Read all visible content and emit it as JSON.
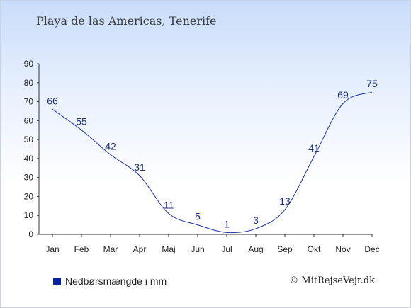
{
  "title": "Playa de las Americas, Tenerife",
  "copyright": "© MitRejseVejr.dk",
  "colors": {
    "line": "#1a2f9e",
    "legend_swatch": "#0a1fa6",
    "label": "#1f2f7a"
  },
  "chart_data": {
    "type": "line",
    "categories": [
      "Jan",
      "Feb",
      "Mar",
      "Apr",
      "Maj",
      "Jun",
      "Jul",
      "Aug",
      "Sep",
      "Okt",
      "Nov",
      "Dec"
    ],
    "series": [
      {
        "name": "Nedbørsmængde i mm",
        "values": [
          66,
          55,
          42,
          31,
          11,
          5,
          1,
          3,
          13,
          41,
          69,
          75
        ]
      }
    ],
    "ylim": [
      0,
      90
    ],
    "yticks": [
      0,
      10,
      20,
      30,
      40,
      50,
      60,
      70,
      80,
      90
    ],
    "legend_position": "bottom-left",
    "grid": false
  }
}
